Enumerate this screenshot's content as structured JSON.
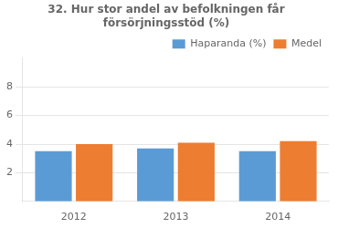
{
  "chart_data": {
    "type": "bar",
    "title": "32. Hur stor andel av befolkningen får\nförsörjningsstöd (%)",
    "categories": [
      "2012",
      "2013",
      "2014"
    ],
    "series": [
      {
        "name": "Haparanda (%)",
        "color": "#5B9BD5",
        "values": [
          3.5,
          3.7,
          3.5
        ]
      },
      {
        "name": "Medel",
        "color": "#ED7D31",
        "values": [
          4.0,
          4.1,
          4.2
        ]
      }
    ],
    "ylim": [
      0,
      10
    ],
    "yticks": [
      2,
      4,
      6,
      8
    ],
    "grid": true,
    "legend": "upper right"
  }
}
